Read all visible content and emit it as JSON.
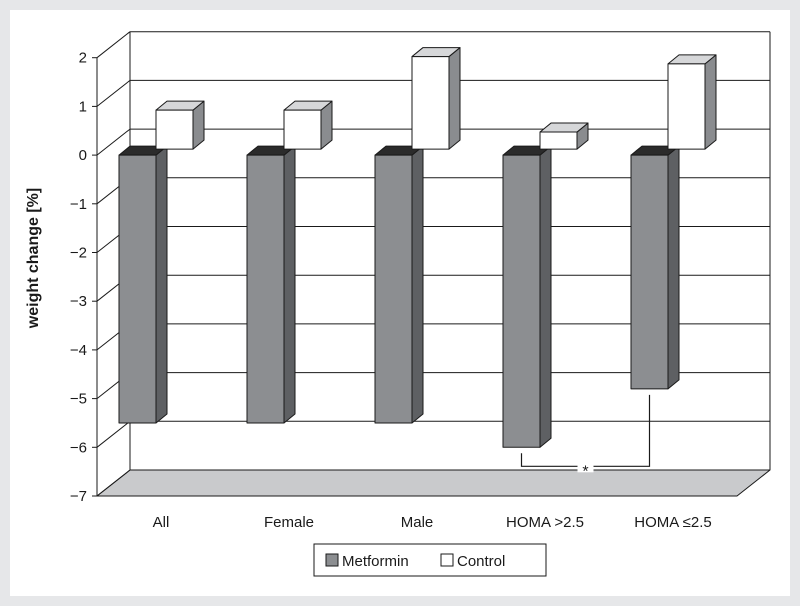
{
  "chart_data": {
    "type": "bar",
    "style": "3d-clustered-column",
    "categories": [
      "All",
      "Female",
      "Male",
      "HOMA >2.5",
      "HOMA ≤2.5"
    ],
    "series": [
      {
        "name": "Metformin",
        "values": [
          -5.5,
          -5.5,
          -5.5,
          -6.0,
          -4.8
        ],
        "color": "#8c8e91"
      },
      {
        "name": "Control",
        "values": [
          0.8,
          0.8,
          1.9,
          0.35,
          1.75
        ],
        "color": "#ffffff"
      }
    ],
    "xlabel": "",
    "ylabel": "weight change [%]",
    "ylim": [
      -7,
      2
    ],
    "yticks": [
      2,
      1,
      0,
      -1,
      -2,
      -3,
      -4,
      -5,
      -6,
      -7
    ],
    "grid": true,
    "legend_position": "bottom",
    "annotations": [
      {
        "text": "*",
        "between": [
          "HOMA >2.5",
          "HOMA ≤2.5"
        ],
        "series": "Metformin"
      }
    ]
  }
}
